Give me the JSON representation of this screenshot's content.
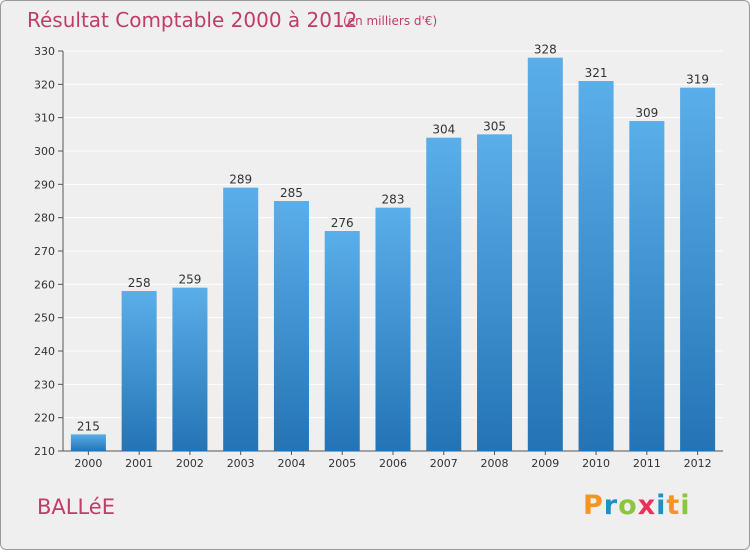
{
  "title": "Résultat Comptable 2000 à 2012",
  "subtitle": "(en milliers d'€)",
  "commune": "BALLéE",
  "logo": {
    "letters": [
      "P",
      "r",
      "o",
      "x",
      "i",
      "t",
      "i"
    ],
    "colors": [
      "#f7941d",
      "#1e90c8",
      "#8cc63f",
      "#e8305a",
      "#1e90c8",
      "#f7941d",
      "#8cc63f"
    ]
  },
  "colors": {
    "bar_top": "#5aaee9",
    "bar_bottom": "#2474b5",
    "grid": "#ffffff",
    "text_accent": "#c03c6a"
  },
  "chart_data": {
    "type": "bar",
    "title": "Résultat Comptable 2000 à 2012",
    "subtitle": "(en milliers d'€)",
    "xlabel": "",
    "ylabel": "",
    "categories": [
      "2000",
      "2001",
      "2002",
      "2003",
      "2004",
      "2005",
      "2006",
      "2007",
      "2008",
      "2009",
      "2010",
      "2011",
      "2012"
    ],
    "values": [
      215,
      258,
      259,
      289,
      285,
      276,
      283,
      304,
      305,
      328,
      321,
      309,
      319
    ],
    "ylim": [
      210,
      330
    ],
    "yticks": [
      210,
      220,
      230,
      240,
      250,
      260,
      270,
      280,
      290,
      300,
      310,
      320,
      330
    ],
    "grid": true,
    "data_labels": true
  }
}
